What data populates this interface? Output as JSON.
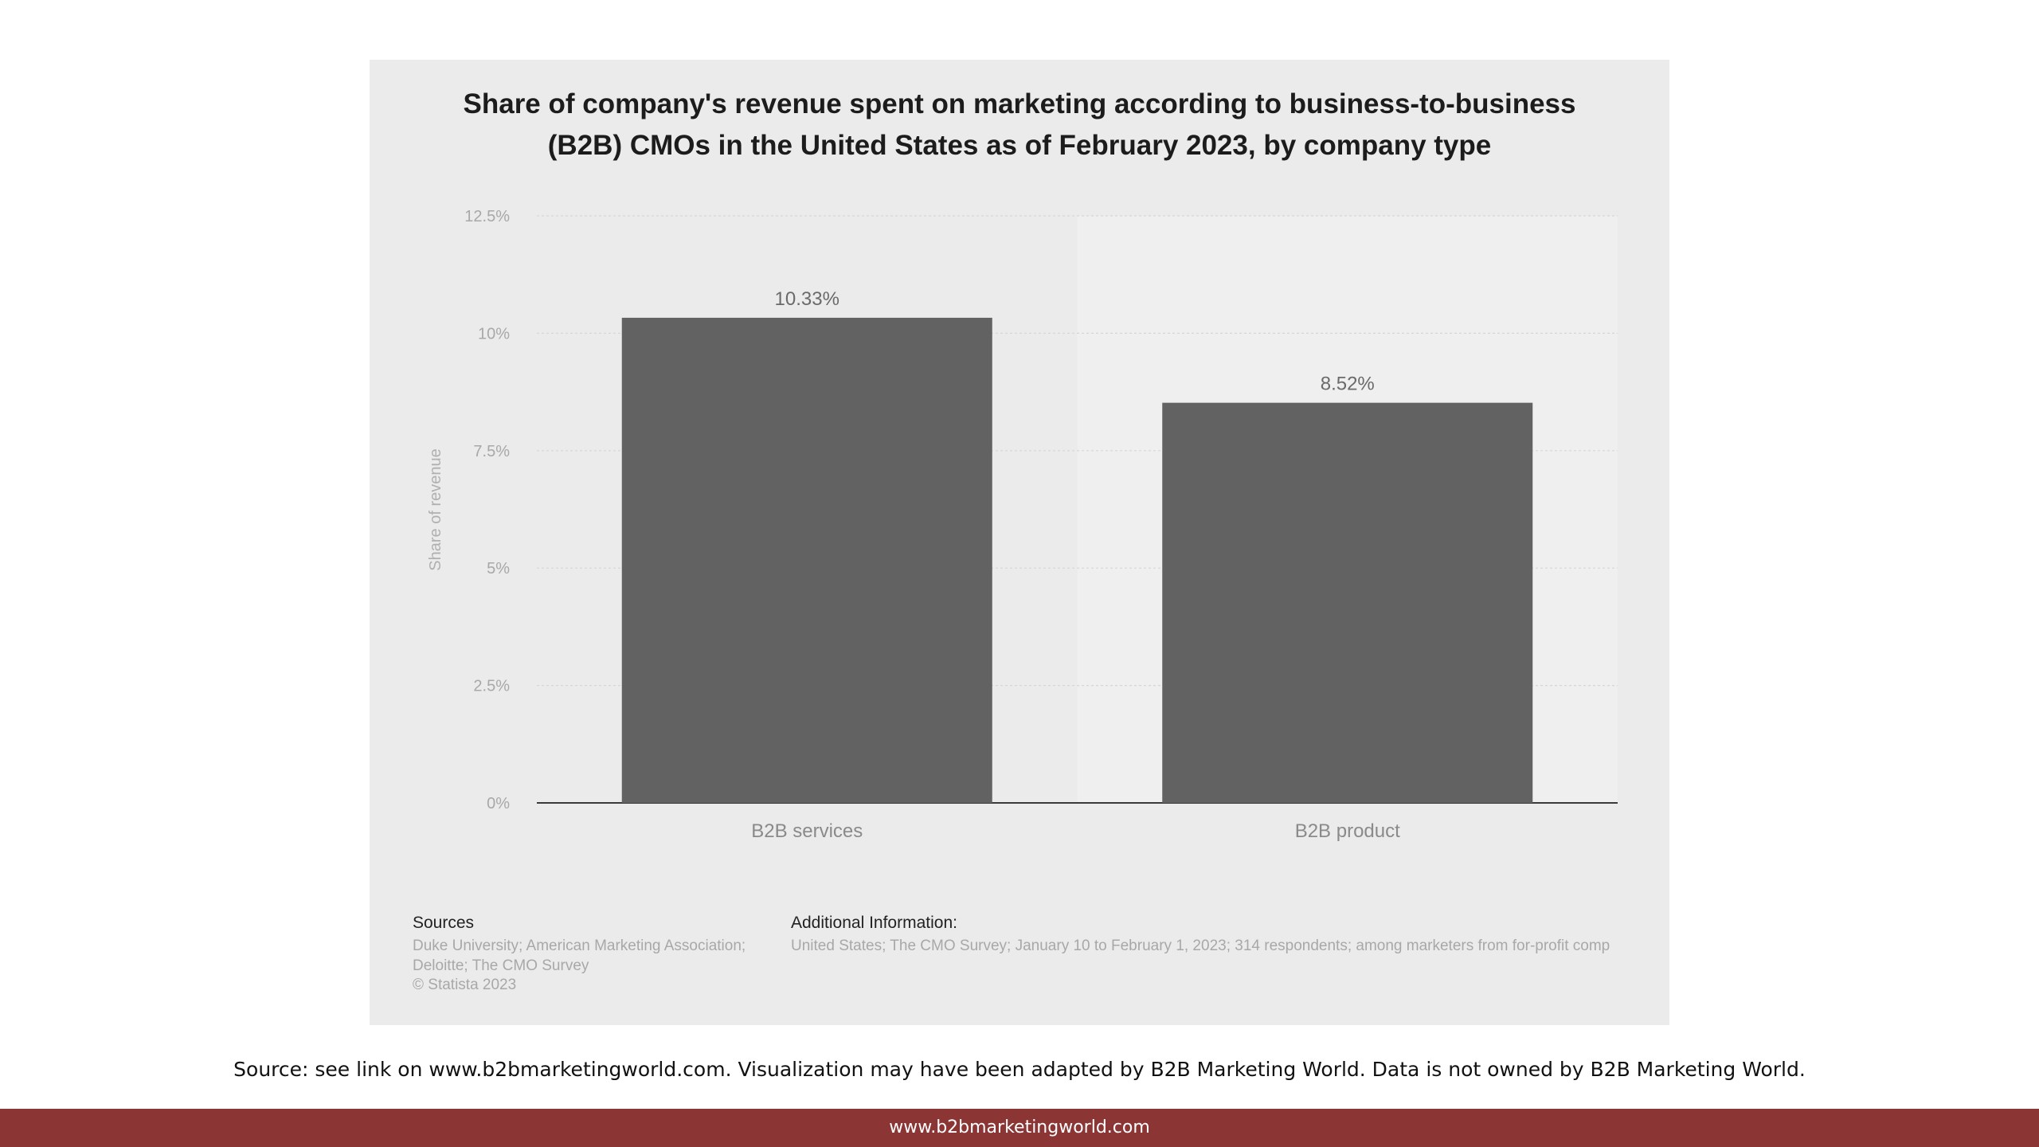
{
  "chart_data": {
    "type": "bar",
    "title": "Share of company's revenue spent on marketing according to business-to-business (B2B) CMOs in the United States as of February 2023, by company type",
    "title_lines": [
      "Share of company's revenue spent on marketing according to business-to-business",
      "(B2B) CMOs in the United States as of February 2023, by company type"
    ],
    "categories": [
      "B2B services",
      "B2B product"
    ],
    "values": [
      10.33,
      8.52
    ],
    "data_labels": [
      "10.33%",
      "8.52%"
    ],
    "xlabel": "",
    "ylabel": "Share of revenue",
    "ylim": [
      0,
      12.5
    ],
    "yticks": [
      0,
      2.5,
      5,
      7.5,
      10,
      12.5
    ],
    "ytick_labels": [
      "0%",
      "2.5%",
      "5%",
      "7.5%",
      "10%",
      "12.5%"
    ],
    "grid": true,
    "bar_color": "#626262"
  },
  "sources": {
    "heading": "Sources",
    "text": "Duke University; American Marketing Association; Deloitte; The CMO Survey",
    "copyright": "© Statista 2023"
  },
  "additional_info": {
    "heading": "Additional Information:",
    "text": "United States; The CMO Survey; January 10 to February 1, 2023; 314 respondents; among marketers from for-profit comp"
  },
  "source_note": "Source: see link on www.b2bmarketingworld.com. Visualization may have been adapted by B2B Marketing World. Data is not owned by B2B Marketing World.",
  "footer": {
    "link": "www.b2bmarketingworld.com",
    "background": "#8b3535"
  }
}
